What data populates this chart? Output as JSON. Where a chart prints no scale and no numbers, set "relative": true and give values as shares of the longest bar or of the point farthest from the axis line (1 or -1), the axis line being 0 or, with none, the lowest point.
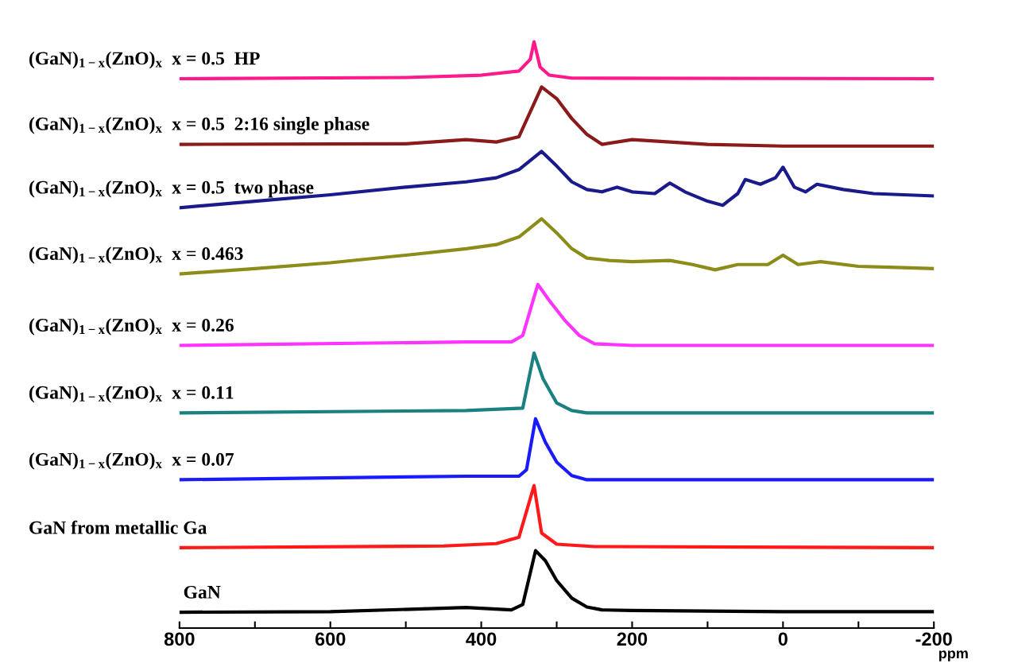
{
  "chart_data": {
    "type": "line",
    "relative": true,
    "xlabel": "ppm",
    "xlim": [
      800,
      -200
    ],
    "xticks": [
      800,
      {
        "value": 700,
        "label": null
      },
      600,
      {
        "value": 500,
        "label": null
      },
      400,
      {
        "value": 300,
        "label": null
      },
      200,
      {
        "value": 100,
        "label": null
      },
      0,
      {
        "value": -100,
        "label": null
      },
      -200
    ],
    "grid": false,
    "legend": false,
    "marker": "none",
    "line_style": "solid",
    "series": [
      {
        "name": "(GaN)$_{1−x}$(ZnO)$_{x}$  x = 0.5  HP",
        "color": "#ff1a8c",
        "x": [
          800,
          500,
          400,
          350,
          335,
          330,
          322,
          310,
          280,
          -200
        ],
        "values": [
          0.937,
          0.939,
          0.943,
          0.95,
          0.97,
          1.0,
          0.957,
          0.943,
          0.938,
          0.937
        ]
      },
      {
        "name": "(GaN)$_{1−x}$(ZnO)$_{x}$  x = 0.5  2:16 single phase",
        "color": "#8b1a1a",
        "x": [
          800,
          500,
          420,
          380,
          350,
          320,
          300,
          280,
          260,
          240,
          200,
          150,
          100,
          0,
          -200
        ],
        "values": [
          0.825,
          0.826,
          0.833,
          0.829,
          0.838,
          0.923,
          0.903,
          0.869,
          0.842,
          0.825,
          0.833,
          0.829,
          0.825,
          0.822,
          0.822
        ]
      },
      {
        "name": "(GaN)$_{1−x}$(ZnO)$_{x}$  x = 0.5  two phase",
        "color": "#1a1a8c",
        "x": [
          800,
          700,
          600,
          500,
          420,
          380,
          350,
          320,
          300,
          280,
          260,
          240,
          220,
          200,
          170,
          150,
          130,
          100,
          80,
          60,
          50,
          30,
          10,
          0,
          -15,
          -30,
          -45,
          -80,
          -120,
          -160,
          -200
        ],
        "values": [
          0.717,
          0.728,
          0.739,
          0.752,
          0.761,
          0.768,
          0.782,
          0.813,
          0.788,
          0.761,
          0.748,
          0.744,
          0.752,
          0.744,
          0.741,
          0.759,
          0.744,
          0.728,
          0.721,
          0.741,
          0.765,
          0.757,
          0.768,
          0.786,
          0.752,
          0.744,
          0.757,
          0.748,
          0.741,
          0.739,
          0.737
        ]
      },
      {
        "name": "(GaN)$_{1−x}$(ZnO)$_{x}$  x = 0.463",
        "color": "#8c8c1a",
        "x": [
          800,
          700,
          600,
          500,
          420,
          380,
          350,
          320,
          300,
          280,
          260,
          230,
          200,
          150,
          120,
          90,
          60,
          20,
          0,
          -20,
          -50,
          -100,
          -150,
          -200
        ],
        "values": [
          0.604,
          0.613,
          0.623,
          0.636,
          0.647,
          0.654,
          0.667,
          0.698,
          0.674,
          0.647,
          0.631,
          0.627,
          0.625,
          0.627,
          0.62,
          0.611,
          0.62,
          0.62,
          0.636,
          0.62,
          0.625,
          0.617,
          0.615,
          0.613
        ]
      },
      {
        "name": "(GaN)$_{1−x}$(ZnO)$_{x}$  x = 0.26",
        "color": "#ff33ff",
        "x": [
          800,
          420,
          360,
          345,
          325,
          310,
          290,
          270,
          250,
          200,
          -200
        ],
        "values": [
          0.482,
          0.488,
          0.488,
          0.499,
          0.586,
          0.559,
          0.526,
          0.499,
          0.485,
          0.482,
          0.482
        ]
      },
      {
        "name": "(GaN)$_{1−x}$(ZnO)$_{x}$  x = 0.11",
        "color": "#1a8080",
        "x": [
          800,
          420,
          345,
          330,
          318,
          300,
          280,
          260,
          -200
        ],
        "values": [
          0.367,
          0.371,
          0.375,
          0.469,
          0.425,
          0.384,
          0.371,
          0.367,
          0.367
        ]
      },
      {
        "name": "(GaN)$_{1−x}$(ZnO)$_{x}$  x = 0.07",
        "color": "#1a1aff",
        "x": [
          800,
          420,
          350,
          340,
          328,
          315,
          300,
          280,
          260,
          -200
        ],
        "values": [
          0.253,
          0.259,
          0.259,
          0.27,
          0.357,
          0.317,
          0.283,
          0.26,
          0.253,
          0.253
        ]
      },
      {
        "name": "GaN from metallic Ga",
        "color": "#ff1a1a",
        "x": [
          800,
          450,
          380,
          350,
          330,
          320,
          300,
          250,
          -200
        ],
        "values": [
          0.137,
          0.14,
          0.144,
          0.155,
          0.243,
          0.162,
          0.143,
          0.139,
          0.137
        ]
      },
      {
        "name": "GaN",
        "color": "#000000",
        "x": [
          800,
          600,
          420,
          360,
          345,
          328,
          315,
          300,
          280,
          260,
          240,
          200,
          0,
          -200
        ],
        "values": [
          0.027,
          0.028,
          0.035,
          0.031,
          0.04,
          0.132,
          0.115,
          0.081,
          0.051,
          0.036,
          0.031,
          0.03,
          0.028,
          0.028
        ]
      }
    ]
  }
}
